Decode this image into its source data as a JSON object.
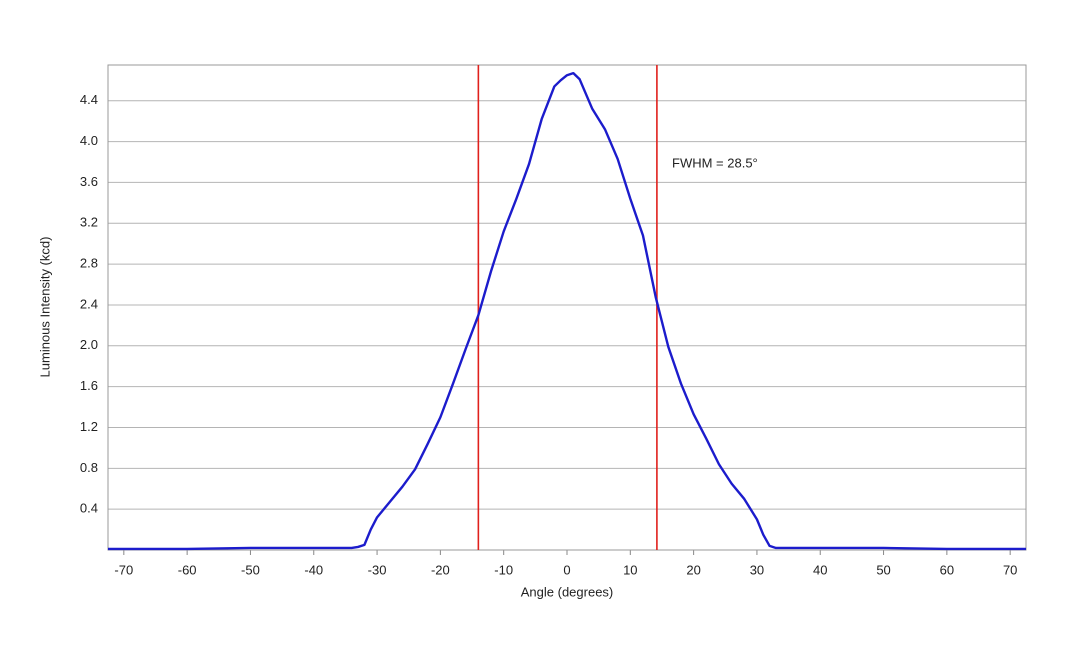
{
  "chart_data": {
    "type": "line",
    "x_label": "Angle (degrees)",
    "y_label": "Luminous Intensity (kcd)",
    "annotation": "FWHM = 28.5°",
    "x": [
      -72.5,
      -60,
      -50,
      -40,
      -34,
      -33,
      -32,
      -31,
      -30,
      -28,
      -26,
      -24,
      -22,
      -20,
      -18,
      -16,
      -14,
      -12,
      -10,
      -8,
      -6,
      -4,
      -2,
      -1,
      0,
      1,
      2,
      4,
      6,
      8,
      10,
      12,
      14,
      16,
      18,
      20,
      22,
      24,
      26,
      28,
      30,
      31,
      32,
      33,
      34,
      40,
      50,
      60,
      72.5
    ],
    "series": [
      {
        "name": "Luminous Intensity",
        "color": "#1c1ccc",
        "values": [
          0.01,
          0.01,
          0.02,
          0.02,
          0.02,
          0.03,
          0.05,
          0.2,
          0.32,
          0.47,
          0.62,
          0.79,
          1.04,
          1.3,
          1.63,
          1.97,
          2.3,
          2.73,
          3.12,
          3.44,
          3.78,
          4.22,
          4.54,
          4.6,
          4.65,
          4.67,
          4.61,
          4.32,
          4.12,
          3.83,
          3.44,
          3.08,
          2.48,
          1.99,
          1.63,
          1.33,
          1.09,
          0.84,
          0.65,
          0.5,
          0.3,
          0.15,
          0.04,
          0.02,
          0.02,
          0.02,
          0.02,
          0.01,
          0.01
        ]
      }
    ],
    "vlines": {
      "color": "#e0201c",
      "values": [
        -14,
        14.2
      ]
    },
    "xlim": [
      -72.5,
      72.5
    ],
    "ylim": [
      0,
      4.75
    ],
    "xticks": [
      -70,
      -60,
      -50,
      -40,
      -30,
      -20,
      -10,
      0,
      10,
      20,
      30,
      40,
      50,
      60,
      70
    ],
    "yticks": [
      0.4,
      0.8,
      1.2,
      1.6,
      {
        "value": 2,
        "label": "2.0"
      },
      2.4,
      2.8,
      3.2,
      3.6,
      {
        "value": 4,
        "label": "4.0"
      },
      4.4
    ],
    "grid": true
  }
}
